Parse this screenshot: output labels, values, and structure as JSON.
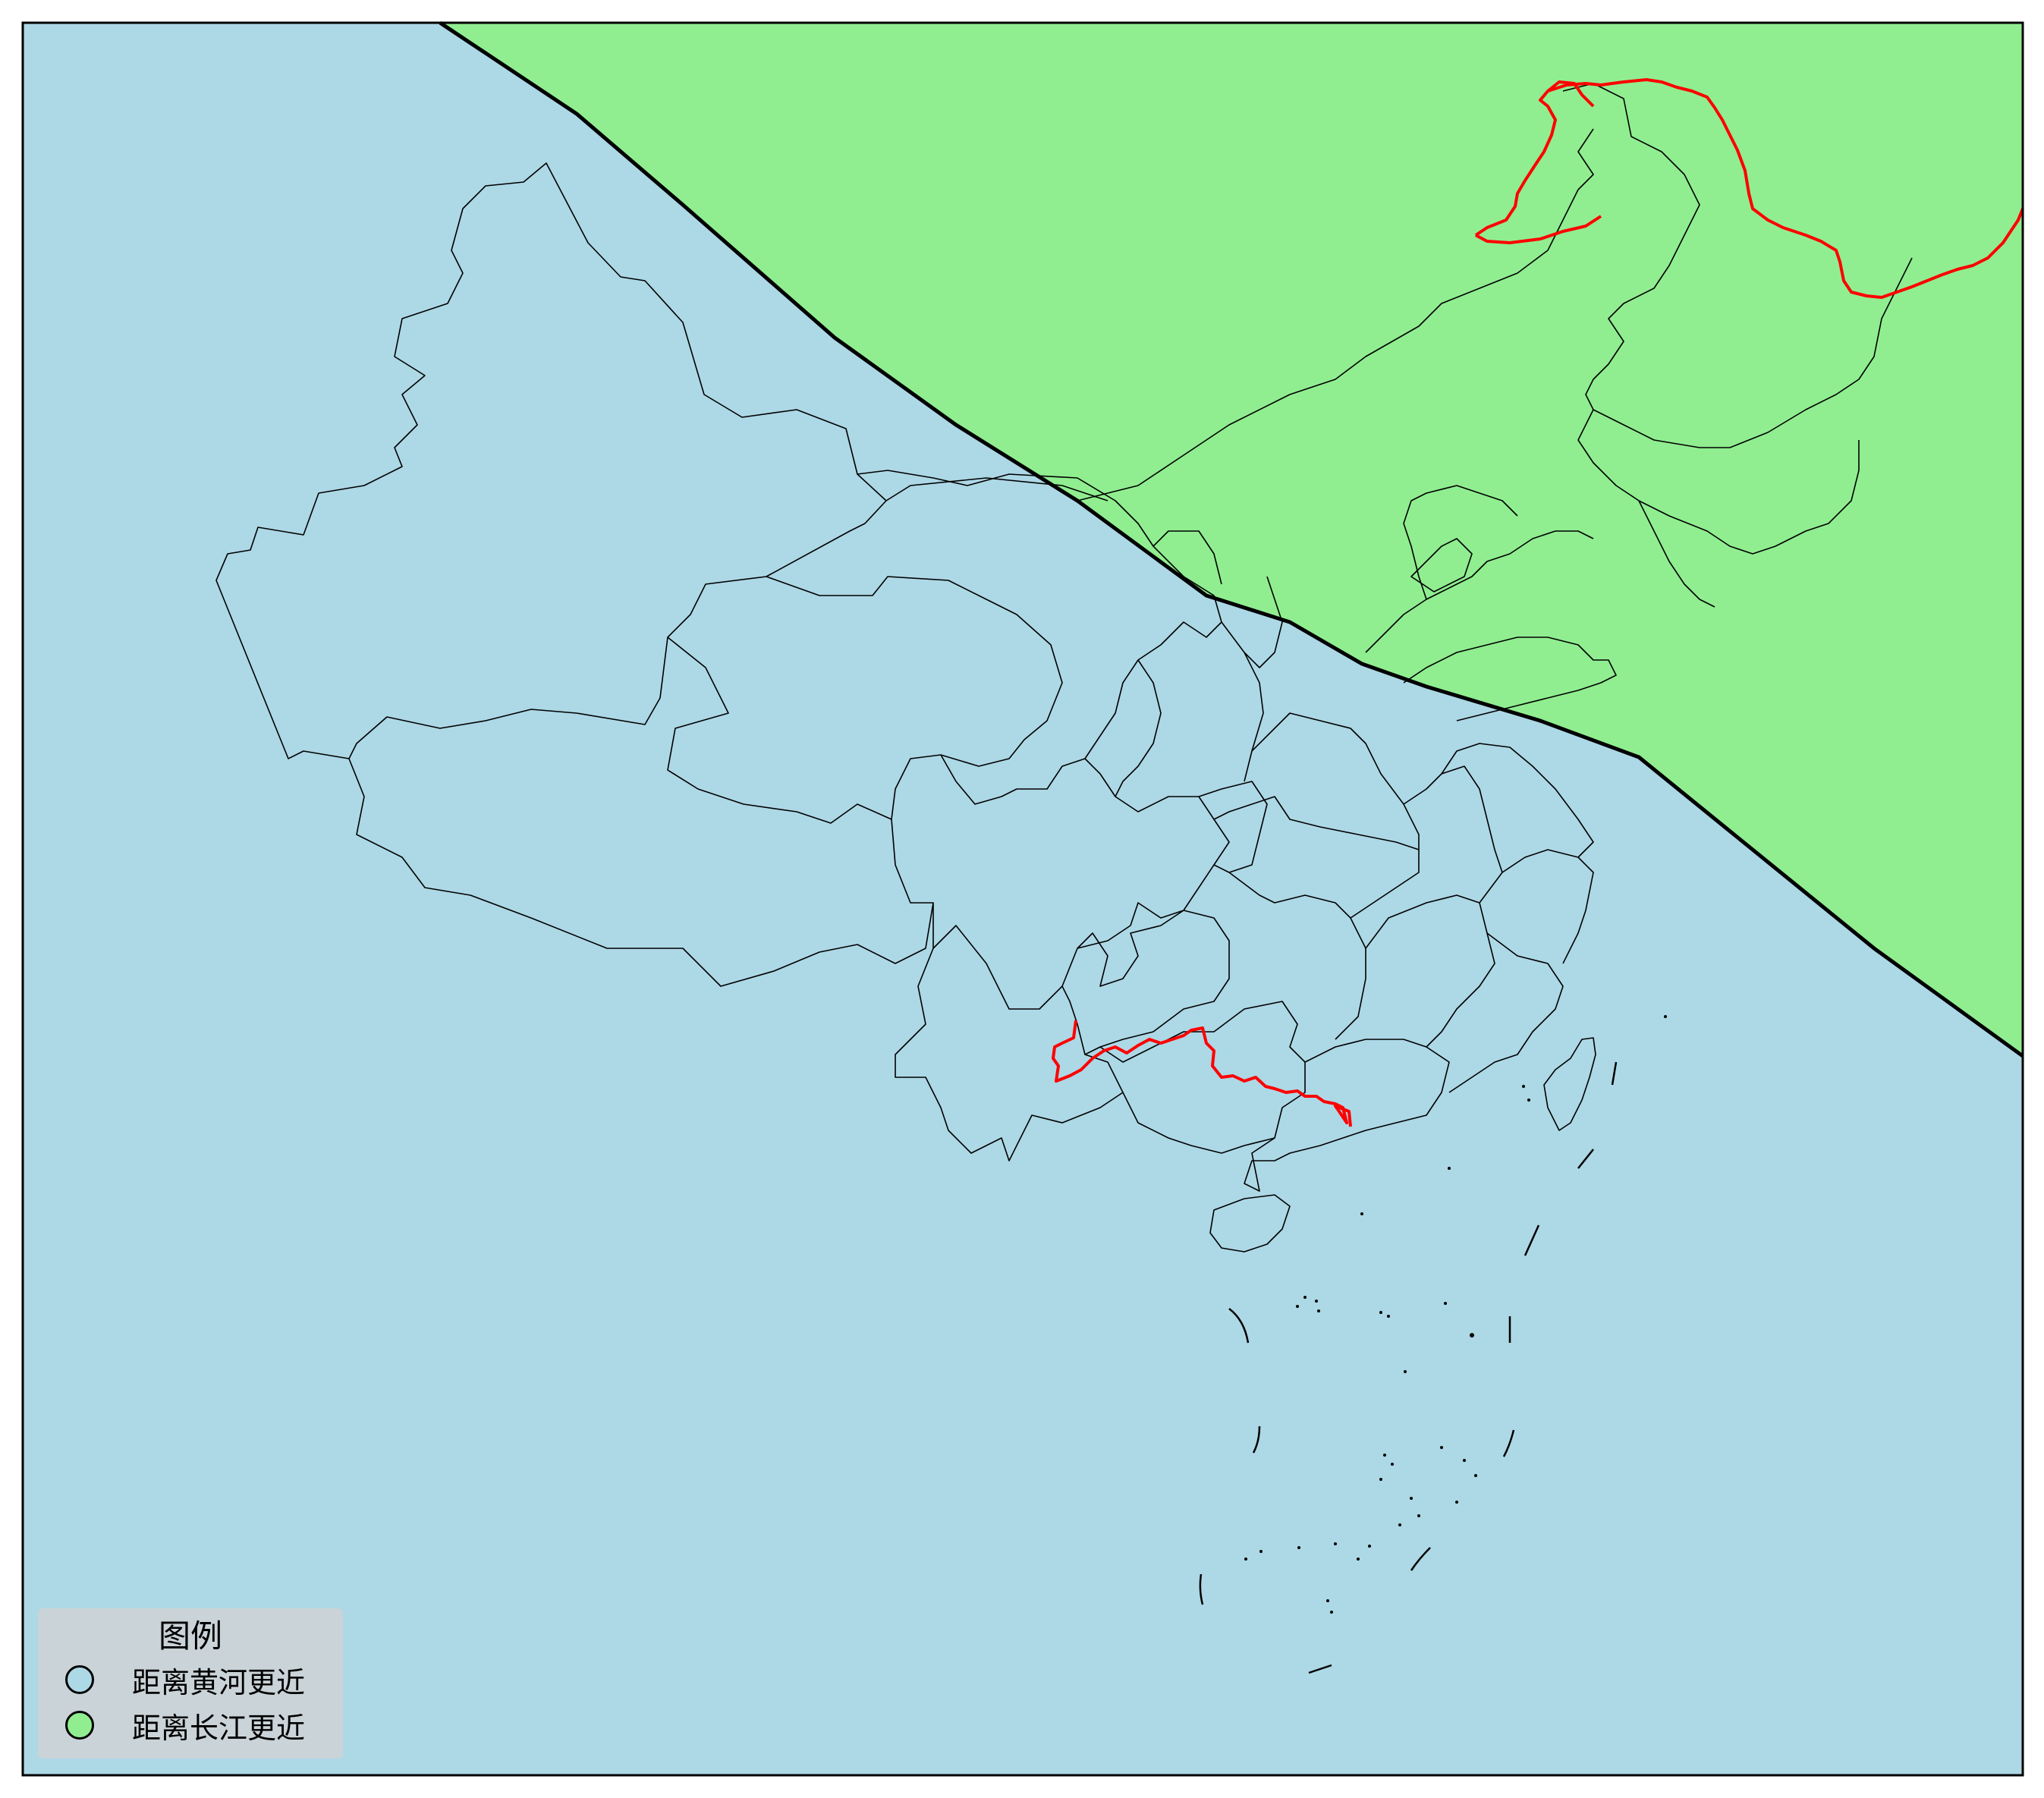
{
  "map": {
    "colors": {
      "closer_yellow_river_fill": "#add8e6",
      "closer_yangtze_fill": "#90ee90",
      "river_line": "#ff0000",
      "boundary_line": "#000000"
    }
  },
  "legend": {
    "title": "图例",
    "items": [
      {
        "label": "距离黄河更近",
        "color": "#add8e6"
      },
      {
        "label": "距离长江更近",
        "color": "#90ee90"
      }
    ]
  }
}
